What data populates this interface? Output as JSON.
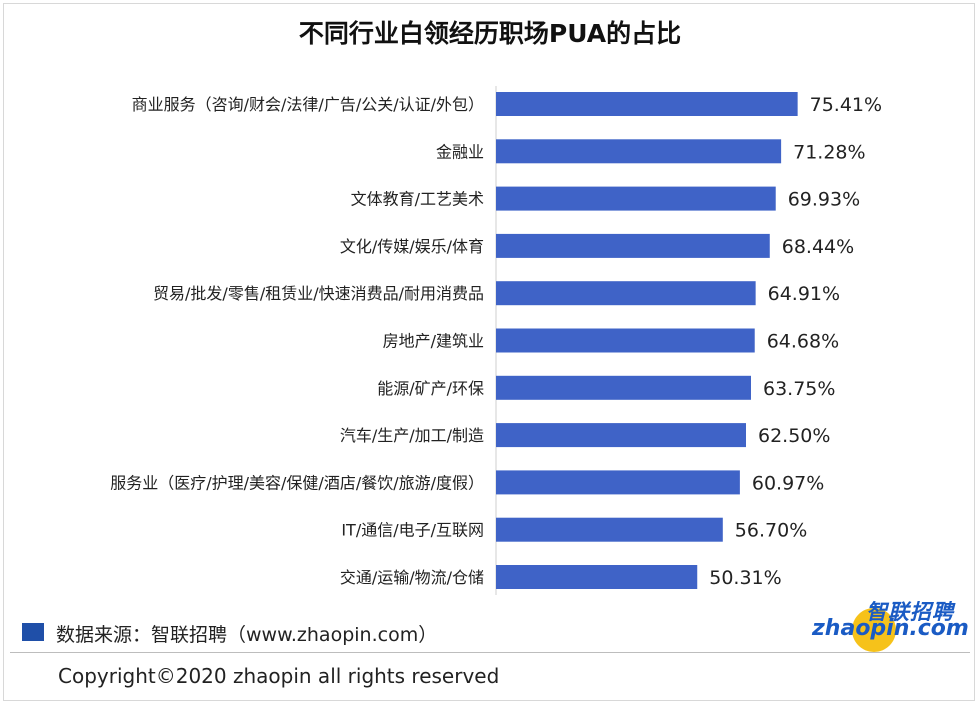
{
  "colors": {
    "bar": "#3f63c7",
    "legend": "#1f4fa8",
    "logo_blue": "#1a5bc4",
    "logo_yellow": "#f6c21a"
  },
  "chart_data": {
    "type": "bar",
    "orientation": "horizontal",
    "title": "不同行业白领经历职场PUA的占比",
    "categories": [
      "商业服务（咨询/财会/法律/广告/公关/认证/外包）",
      "金融业",
      "文体教育/工艺美术",
      "文化/传媒/娱乐/体育",
      "贸易/批发/零售/租赁业/快速消费品/耐用消费品",
      "房地产/建筑业",
      "能源/矿产/环保",
      "汽车/生产/加工/制造",
      "服务业（医疗/护理/美容/保健/酒店/餐饮/旅游/度假）",
      "IT/通信/电子/互联网",
      "交通/运输/物流/仓储"
    ],
    "values": [
      75.41,
      71.28,
      69.93,
      68.44,
      64.91,
      64.68,
      63.75,
      62.5,
      60.97,
      56.7,
      50.31
    ],
    "value_labels": [
      "75.41%",
      "71.28%",
      "69.93%",
      "68.44%",
      "64.91%",
      "64.68%",
      "63.75%",
      "62.50%",
      "60.97%",
      "56.70%",
      "50.31%"
    ],
    "xlim": [
      0,
      100
    ],
    "grid": false
  },
  "legend": {
    "source_text": "数据来源：智联招聘（www.zhaopin.com）"
  },
  "logo": {
    "chinese": "智联招聘",
    "english": "zhaopin.com"
  },
  "footer": {
    "copyright": "Copyright©2020 zhaopin all rights reserved"
  }
}
